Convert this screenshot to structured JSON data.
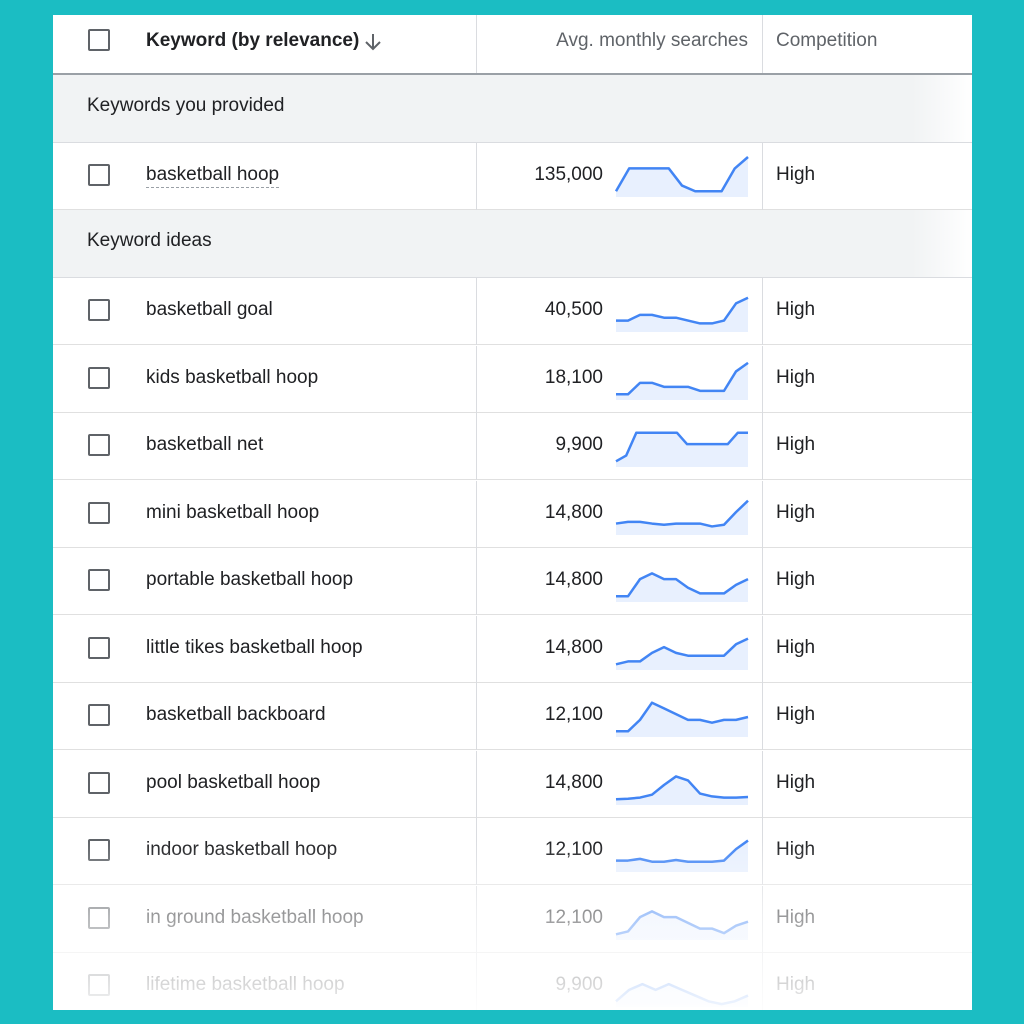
{
  "header": {
    "keyword_label": "Keyword (by relevance)",
    "avg_label": "Avg. monthly searches",
    "competition_label": "Competition"
  },
  "groups": {
    "provided": "Keywords you provided",
    "ideas": "Keyword ideas"
  },
  "colors": {
    "accent": "#4285f4",
    "spark_fill": "#e8f0fe",
    "frame": "#1bbdc3"
  },
  "rows": [
    {
      "keyword": "basketball hoop",
      "volume": "135,000",
      "competition": "High",
      "trend": [
        1,
        5,
        5,
        5,
        5,
        2,
        1,
        1,
        1,
        5,
        7
      ]
    },
    {
      "keyword": "basketball goal",
      "volume": "40,500",
      "competition": "High",
      "trend": [
        2,
        2,
        3,
        3,
        2.5,
        2.5,
        2,
        1.5,
        1.5,
        2,
        5,
        6
      ]
    },
    {
      "keyword": "kids basketball hoop",
      "volume": "18,100",
      "competition": "High",
      "trend": [
        1,
        1,
        3,
        3,
        2.3,
        2.3,
        2.3,
        1.6,
        1.6,
        1.6,
        5,
        6.5
      ]
    },
    {
      "keyword": "basketball net",
      "volume": "9,900",
      "competition": "High",
      "trend": [
        1,
        2,
        6,
        6,
        6,
        6,
        6,
        4,
        4,
        4,
        4,
        4,
        6,
        6
      ]
    },
    {
      "keyword": "mini basketball hoop",
      "volume": "14,800",
      "competition": "High",
      "trend": [
        2,
        2.3,
        2.3,
        2,
        1.8,
        2,
        2,
        2,
        1.5,
        1.8,
        4,
        6
      ]
    },
    {
      "keyword": "portable basketball hoop",
      "volume": "14,800",
      "competition": "High",
      "trend": [
        1,
        1,
        4,
        5,
        4,
        4,
        2.5,
        1.5,
        1.5,
        1.5,
        3,
        4
      ]
    },
    {
      "keyword": "little tikes basketball hoop",
      "volume": "14,800",
      "competition": "High",
      "trend": [
        1,
        1.5,
        1.5,
        3,
        4,
        3,
        2.5,
        2.5,
        2.5,
        2.5,
        4.5,
        5.5
      ]
    },
    {
      "keyword": "basketball backboard",
      "volume": "12,100",
      "competition": "High",
      "trend": [
        1,
        1,
        3,
        6,
        5,
        4,
        3,
        3,
        2.5,
        3,
        3,
        3.5
      ]
    },
    {
      "keyword": "pool basketball hoop",
      "volume": "14,800",
      "competition": "High",
      "trend": [
        1,
        1.1,
        1.3,
        1.8,
        3.5,
        5,
        4.3,
        2,
        1.5,
        1.3,
        1.3,
        1.4
      ]
    },
    {
      "keyword": "indoor basketball hoop",
      "volume": "12,100",
      "competition": "High",
      "trend": [
        2,
        2,
        2.3,
        1.8,
        1.8,
        2.1,
        1.8,
        1.8,
        1.8,
        2,
        4,
        5.5
      ]
    },
    {
      "keyword": "in ground basketball hoop",
      "volume": "12,100",
      "competition": "High",
      "trend": [
        1,
        1.5,
        4,
        5,
        4,
        4,
        3,
        2,
        2,
        1.2,
        2.5,
        3.2
      ]
    },
    {
      "keyword": "lifetime basketball hoop",
      "volume": "9,900",
      "competition": "High",
      "trend": [
        1,
        3,
        4,
        3,
        4,
        3,
        2,
        1,
        0.5,
        1,
        2
      ]
    }
  ]
}
